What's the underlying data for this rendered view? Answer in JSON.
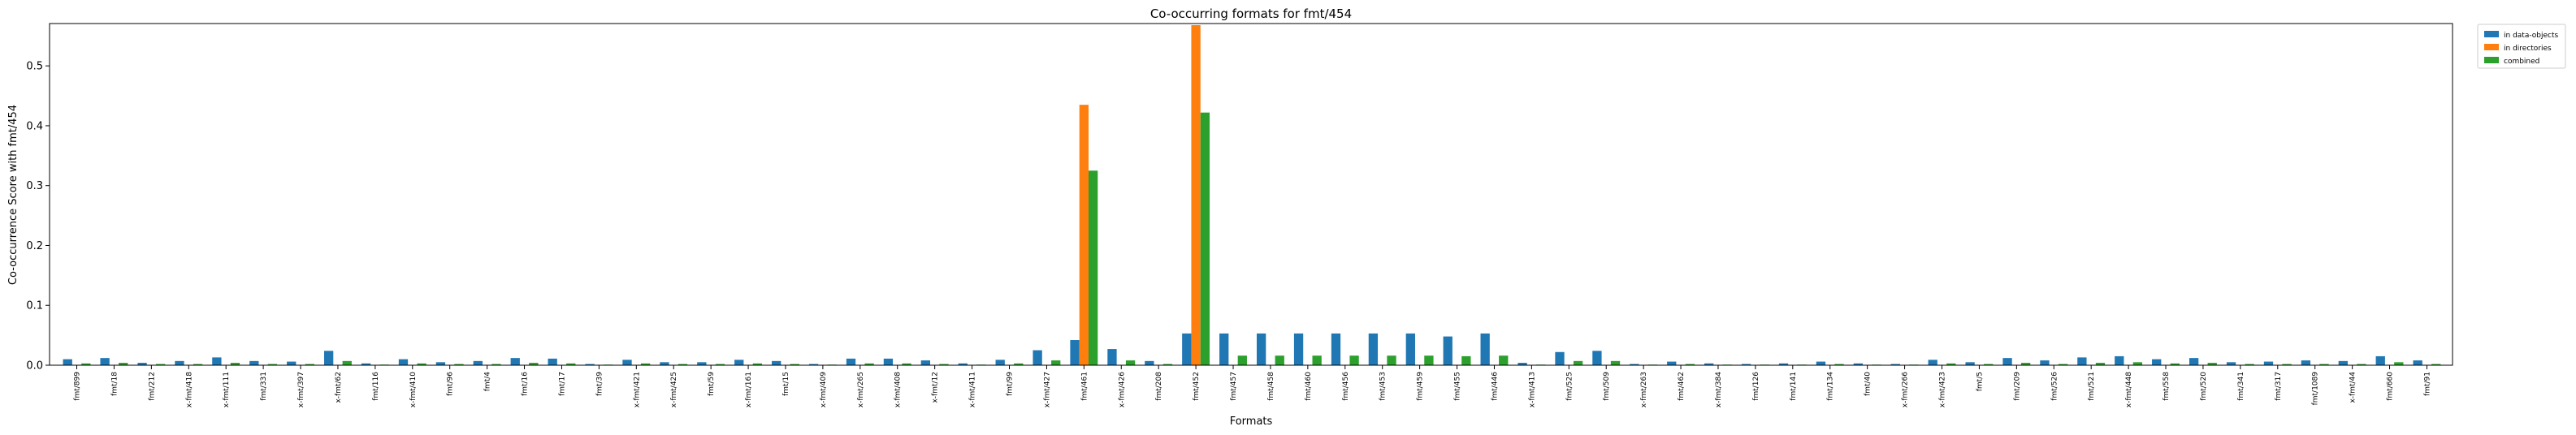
{
  "chart_data": {
    "type": "bar",
    "title": "Co-occurring formats for fmt/454",
    "xlabel": "Formats",
    "ylabel": "Co-occurrence Score with fmt/454",
    "ylim": [
      0,
      0.568
    ],
    "yticks": [
      0.0,
      0.1,
      0.2,
      0.3,
      0.4,
      0.5
    ],
    "ytick_labels": [
      "0.0",
      "0.1",
      "0.2",
      "0.3",
      "0.4",
      "0.5"
    ],
    "legend_position": "outside-top-right",
    "grid": false,
    "categories": [
      "fmt/899",
      "fmt/18",
      "fmt/212",
      "x-fmt/418",
      "x-fmt/111",
      "fmt/331",
      "x-fmt/397",
      "x-fmt/62",
      "fmt/116",
      "x-fmt/410",
      "fmt/96",
      "fmt/4",
      "fmt/16",
      "fmt/17",
      "fmt/39",
      "x-fmt/421",
      "x-fmt/425",
      "fmt/59",
      "x-fmt/161",
      "fmt/15",
      "x-fmt/409",
      "x-fmt/265",
      "x-fmt/408",
      "x-fmt/12",
      "x-fmt/411",
      "fmt/99",
      "x-fmt/427",
      "fmt/461",
      "x-fmt/426",
      "fmt/208",
      "fmt/452",
      "fmt/457",
      "fmt/458",
      "fmt/460",
      "fmt/456",
      "fmt/453",
      "fmt/459",
      "fmt/455",
      "fmt/446",
      "x-fmt/413",
      "fmt/525",
      "fmt/509",
      "x-fmt/263",
      "fmt/462",
      "x-fmt/384",
      "fmt/126",
      "fmt/141",
      "fmt/134",
      "fmt/40",
      "x-fmt/266",
      "x-fmt/423",
      "fmt/5",
      "fmt/209",
      "fmt/526",
      "fmt/521",
      "x-fmt/448",
      "fmt/558",
      "fmt/520",
      "fmt/341",
      "fmt/317",
      "fmt/1089",
      "x-fmt/44",
      "fmt/660",
      "fmt/91"
    ],
    "series": [
      {
        "name": "in data-objects",
        "color": "#1f77b4",
        "values": [
          0.01,
          0.012,
          0.004,
          0.007,
          0.013,
          0.007,
          0.006,
          0.024,
          0.003,
          0.01,
          0.005,
          0.007,
          0.012,
          0.011,
          0.002,
          0.009,
          0.005,
          0.005,
          0.009,
          0.007,
          0.002,
          0.011,
          0.011,
          0.008,
          0.003,
          0.009,
          0.025,
          0.042,
          0.027,
          0.007,
          0.053,
          0.053,
          0.053,
          0.053,
          0.053,
          0.053,
          0.053,
          0.048,
          0.053,
          0.004,
          0.022,
          0.024,
          0.002,
          0.006,
          0.003,
          0.002,
          0.003,
          0.006,
          0.003,
          0.002,
          0.009,
          0.005,
          0.012,
          0.008,
          0.013,
          0.015,
          0.01,
          0.012,
          0.005,
          0.006,
          0.008,
          0.007,
          0.015,
          0.008
        ]
      },
      {
        "name": "in directories",
        "color": "#ff7f0e",
        "values": [
          0,
          0,
          0,
          0,
          0,
          0,
          0,
          0,
          0,
          0,
          0,
          0,
          0,
          0,
          0,
          0,
          0,
          0,
          0,
          0,
          0,
          0,
          0,
          0,
          0,
          0,
          0,
          0.435,
          0,
          0,
          0.568,
          0,
          0,
          0,
          0,
          0,
          0,
          0,
          0,
          0,
          0,
          0,
          0,
          0,
          0,
          0,
          0,
          0,
          0,
          0,
          0,
          0,
          0,
          0,
          0,
          0,
          0,
          0,
          0,
          0,
          0,
          0,
          0,
          0
        ]
      },
      {
        "name": "combined",
        "color": "#2ca02c",
        "values": [
          0.003,
          0.004,
          0.002,
          0.002,
          0.004,
          0.002,
          0.002,
          0.007,
          0.001,
          0.003,
          0.002,
          0.002,
          0.004,
          0.003,
          0.001,
          0.003,
          0.002,
          0.002,
          0.003,
          0.002,
          0.001,
          0.003,
          0.003,
          0.002,
          0.001,
          0.003,
          0.008,
          0.325,
          0.008,
          0.002,
          0.422,
          0.016,
          0.016,
          0.016,
          0.016,
          0.016,
          0.016,
          0.015,
          0.016,
          0.001,
          0.007,
          0.007,
          0.001,
          0.002,
          0.001,
          0.001,
          0.001,
          0.002,
          0.001,
          0.001,
          0.003,
          0.002,
          0.004,
          0.002,
          0.004,
          0.005,
          0.003,
          0.004,
          0.002,
          0.002,
          0.002,
          0.002,
          0.005,
          0.002
        ]
      }
    ]
  }
}
